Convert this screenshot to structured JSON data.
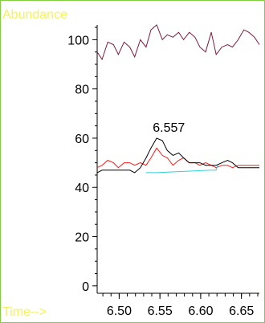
{
  "chart_data": {
    "type": "line",
    "xlabel": "Time-->",
    "ylabel": "Abundance",
    "xlim": [
      6.473,
      6.672
    ],
    "ylim": [
      -3,
      106
    ],
    "y_ticks": [
      0,
      20,
      40,
      60,
      80,
      100
    ],
    "x_ticks": [
      6.5,
      6.55,
      6.6,
      6.65
    ],
    "x_tick_labels": [
      "6.50",
      "6.55",
      "6.60",
      "6.65"
    ],
    "grid": false,
    "series": [
      {
        "color": "#7b1a3c",
        "x": [
          6.473,
          6.479,
          6.486,
          6.493,
          6.499,
          6.506,
          6.513,
          6.519,
          6.526,
          6.533,
          6.539,
          6.546,
          6.553,
          6.559,
          6.566,
          6.573,
          6.579,
          6.586,
          6.593,
          6.599,
          6.606,
          6.613,
          6.619,
          6.626,
          6.633,
          6.639,
          6.646,
          6.653,
          6.659,
          6.666,
          6.672
        ],
        "y": [
          95,
          92,
          99,
          98,
          94,
          99,
          97,
          93,
          100,
          97,
          104,
          106,
          100,
          102,
          101,
          103,
          100,
          103,
          101,
          97,
          95,
          103,
          94,
          97,
          98,
          97,
          100,
          104,
          103,
          101,
          98
        ]
      },
      {
        "color": "#ff1a1a",
        "x": [
          6.473,
          6.479,
          6.486,
          6.493,
          6.499,
          6.506,
          6.513,
          6.519,
          6.526,
          6.533,
          6.539,
          6.546,
          6.553,
          6.559,
          6.566,
          6.573,
          6.579,
          6.586,
          6.593,
          6.599,
          6.606,
          6.613,
          6.619,
          6.626,
          6.633,
          6.639,
          6.646,
          6.653,
          6.659,
          6.666,
          6.672
        ],
        "y": [
          48,
          49,
          51,
          50,
          48,
          50,
          50,
          49,
          50,
          49,
          52,
          56,
          53,
          52,
          49,
          51,
          52,
          50,
          50,
          49,
          50,
          49,
          48,
          49,
          49,
          48,
          49,
          49,
          49,
          49,
          49
        ]
      },
      {
        "color": "#000000",
        "x": [
          6.473,
          6.479,
          6.486,
          6.493,
          6.499,
          6.506,
          6.513,
          6.519,
          6.526,
          6.533,
          6.539,
          6.546,
          6.553,
          6.559,
          6.566,
          6.573,
          6.579,
          6.586,
          6.593,
          6.599,
          6.606,
          6.613,
          6.619,
          6.626,
          6.633,
          6.639,
          6.646,
          6.653,
          6.659,
          6.666,
          6.672
        ],
        "y": [
          46,
          47,
          47,
          47,
          47,
          47,
          47,
          46,
          48,
          52,
          56,
          60,
          59,
          55,
          53,
          54,
          52,
          50,
          50,
          50,
          49,
          49,
          49,
          50,
          51,
          50,
          48,
          48,
          48,
          48,
          48
        ]
      },
      {
        "color": "#2fd0d8",
        "x": [
          6.533,
          6.546,
          6.559,
          6.573,
          6.586,
          6.599,
          6.613,
          6.619,
          6.621
        ],
        "y": [
          46,
          46,
          46.2,
          46.4,
          46.6,
          46.8,
          47,
          47,
          49
        ]
      }
    ],
    "annotations": [
      {
        "text": "6.557",
        "x": 6.557,
        "y": 60
      }
    ]
  }
}
